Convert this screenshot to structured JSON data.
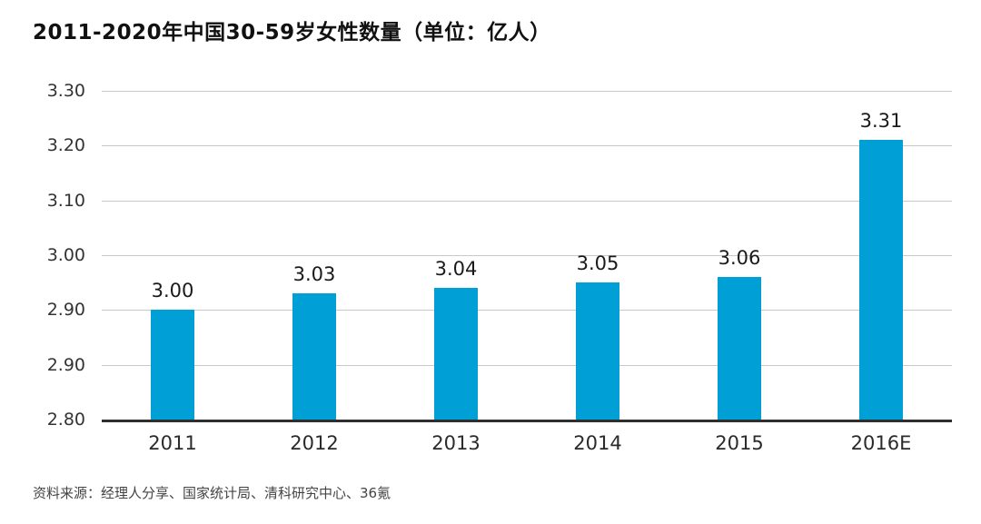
{
  "chart": {
    "title": "2011-2020年中国30-59岁女性数量（单位：亿人）",
    "source": "资料来源：经理人分享、国家统计局、清科研究中心、36氪"
  },
  "chart_data": {
    "type": "bar",
    "title": "2011-2020年中国30-59岁女性数量（单位：亿人）",
    "categories": [
      "2011",
      "2012",
      "2013",
      "2014",
      "2015",
      "2016E"
    ],
    "values": [
      3.0,
      3.03,
      3.04,
      3.05,
      3.06,
      3.31
    ],
    "value_labels": [
      "3.00",
      "3.03",
      "3.04",
      "3.05",
      "3.06",
      "3.31"
    ],
    "y_ticks_top_to_bottom": [
      "3.30",
      "3.20",
      "3.10",
      "3.00",
      "2.90",
      "2.90",
      "2.80"
    ],
    "axis_min": 2.8,
    "axis_max": 3.4,
    "xlabel": "",
    "ylabel": "",
    "grid": true,
    "legend": "none",
    "bar_color": "#00A0D6"
  }
}
